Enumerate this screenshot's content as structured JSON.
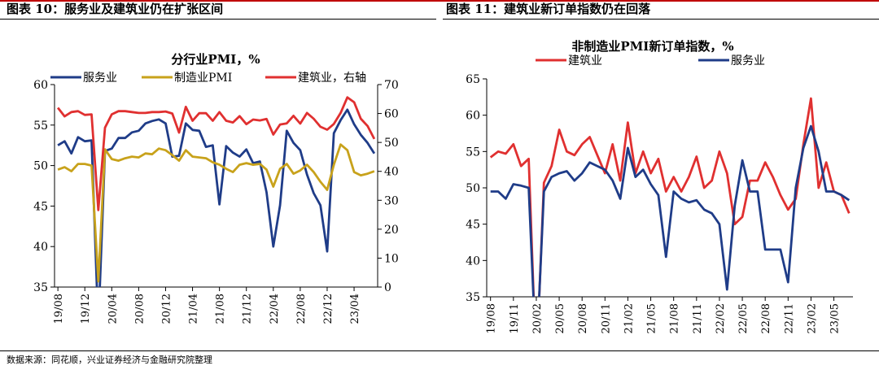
{
  "panels": {
    "left_title": "图表 10：服务业及建筑业仍在扩张区间",
    "right_title": "图表 11：建筑业新订单指数仍在回落"
  },
  "source": "数据来源：同花顺，兴业证券经济与金融研究院整理",
  "colors": {
    "blue": "#1f3c88",
    "gold": "#c8a21b",
    "red": "#e03030",
    "accent": "#c00000"
  },
  "chart_data": [
    {
      "type": "line",
      "title": "分行业PMI，%",
      "x": [
        "19/08",
        "19/09",
        "19/10",
        "19/11",
        "19/12",
        "20/01",
        "20/02",
        "20/03",
        "20/04",
        "20/05",
        "20/06",
        "20/07",
        "20/08",
        "20/09",
        "20/10",
        "20/11",
        "20/12",
        "21/01",
        "21/02",
        "21/03",
        "21/04",
        "21/05",
        "21/06",
        "21/07",
        "21/08",
        "21/09",
        "21/10",
        "21/11",
        "21/12",
        "22/01",
        "22/02",
        "22/03",
        "22/04",
        "22/05",
        "22/06",
        "22/07",
        "22/08",
        "22/09",
        "22/10",
        "22/11",
        "22/12",
        "23/01",
        "23/02",
        "23/03",
        "23/04",
        "23/05",
        "23/06",
        "23/07"
      ],
      "x_tick_labels": [
        "19/08",
        "19/12",
        "20/04",
        "20/08",
        "20/12",
        "21/04",
        "21/08",
        "21/12",
        "22/04",
        "22/08",
        "22/12",
        "23/04"
      ],
      "ylim": [
        35,
        60
      ],
      "yticks": [
        35,
        40,
        45,
        50,
        55,
        60
      ],
      "y2lim": [
        0,
        70
      ],
      "y2ticks": [
        0,
        10,
        20,
        30,
        40,
        50,
        60,
        70
      ],
      "series": [
        {
          "name": "服务业",
          "axis": "left",
          "color": "#1f3c88",
          "values": [
            52.5,
            53.0,
            51.5,
            53.5,
            53.0,
            53.1,
            30.1,
            51.8,
            52.1,
            53.4,
            53.4,
            54.1,
            54.3,
            55.2,
            55.5,
            55.7,
            55.2,
            51.1,
            51.2,
            55.2,
            54.4,
            54.3,
            52.3,
            52.5,
            45.2,
            52.4,
            51.6,
            51.1,
            52.0,
            50.3,
            50.5,
            46.7,
            40.0,
            45.1,
            54.3,
            52.8,
            51.9,
            48.9,
            46.6,
            45.1,
            39.4,
            54.0,
            55.6,
            56.9,
            55.1,
            53.8,
            52.8,
            51.5
          ]
        },
        {
          "name": "制造业PMI",
          "axis": "left",
          "color": "#c8a21b",
          "values": [
            49.5,
            49.8,
            49.3,
            50.2,
            50.2,
            50.0,
            35.7,
            52.0,
            50.8,
            50.6,
            50.9,
            51.1,
            51.0,
            51.5,
            51.4,
            52.1,
            51.9,
            51.3,
            50.6,
            51.9,
            51.1,
            51.0,
            50.9,
            50.4,
            50.1,
            49.6,
            49.2,
            50.1,
            50.3,
            50.1,
            50.2,
            49.5,
            47.4,
            49.6,
            50.2,
            49.0,
            49.4,
            50.1,
            49.2,
            48.0,
            47.0,
            50.1,
            52.6,
            51.9,
            49.2,
            48.8,
            49.0,
            49.3
          ]
        },
        {
          "name": "建筑业，右轴",
          "axis": "right",
          "color": "#e03030",
          "values": [
            62.0,
            59.0,
            60.5,
            60.8,
            59.5,
            59.7,
            26.6,
            55.1,
            59.7,
            60.8,
            60.8,
            60.5,
            60.2,
            60.2,
            60.5,
            60.5,
            60.7,
            60.0,
            53.4,
            62.3,
            57.5,
            60.1,
            60.1,
            57.5,
            60.5,
            57.5,
            56.9,
            59.1,
            56.3,
            57.9,
            57.6,
            58.1,
            52.7,
            56.2,
            56.6,
            59.2,
            56.5,
            60.2,
            58.2,
            55.4,
            54.4,
            56.4,
            60.2,
            65.6,
            63.9,
            58.2,
            55.7,
            51.2
          ]
        }
      ]
    },
    {
      "type": "line",
      "title": "非制造业PMI新订单指数，%",
      "x": [
        "19/08",
        "19/09",
        "19/10",
        "19/11",
        "19/12",
        "20/01",
        "20/02",
        "20/03",
        "20/04",
        "20/05",
        "20/06",
        "20/07",
        "20/08",
        "20/09",
        "20/10",
        "20/11",
        "20/12",
        "21/01",
        "21/02",
        "21/03",
        "21/04",
        "21/05",
        "21/06",
        "21/07",
        "21/08",
        "21/09",
        "21/10",
        "21/11",
        "21/12",
        "22/01",
        "22/02",
        "22/03",
        "22/04",
        "22/05",
        "22/06",
        "22/07",
        "22/08",
        "22/09",
        "22/10",
        "22/11",
        "22/12",
        "23/01",
        "23/02",
        "23/03",
        "23/04",
        "23/05",
        "23/06",
        "23/07"
      ],
      "x_tick_labels": [
        "19/08",
        "19/11",
        "20/02",
        "20/05",
        "20/08",
        "20/11",
        "21/02",
        "21/05",
        "21/08",
        "21/11",
        "22/02",
        "22/05",
        "22/08",
        "22/11",
        "23/02",
        "23/05"
      ],
      "ylim": [
        35,
        65
      ],
      "yticks": [
        35,
        40,
        45,
        50,
        55,
        60,
        65
      ],
      "series": [
        {
          "name": "建筑业",
          "color": "#e03030",
          "values": [
            54.2,
            55.0,
            54.7,
            56.0,
            53.0,
            54.0,
            25.0,
            50.7,
            53.0,
            58.0,
            55.0,
            54.5,
            56.0,
            57.0,
            54.5,
            52.0,
            56.0,
            51.0,
            59.0,
            52.0,
            55.0,
            52.0,
            54.0,
            49.5,
            51.5,
            49.5,
            51.5,
            54.3,
            50.0,
            51.0,
            55.0,
            52.0,
            45.0,
            46.0,
            51.0,
            51.0,
            53.5,
            51.5,
            49.0,
            47.0,
            48.5,
            56.0,
            62.3,
            50.0,
            53.5,
            49.5,
            49.0,
            46.5
          ]
        },
        {
          "name": "服务业",
          "color": "#1f3c88",
          "values": [
            49.5,
            49.5,
            48.5,
            50.5,
            50.3,
            50.0,
            26.0,
            49.5,
            51.5,
            52.0,
            52.3,
            51.0,
            52.0,
            53.5,
            53.0,
            52.5,
            51.0,
            48.5,
            55.5,
            51.5,
            52.5,
            50.5,
            49.0,
            40.5,
            49.5,
            48.5,
            48.0,
            48.3,
            47.0,
            46.5,
            45.0,
            36.0,
            47.5,
            53.8,
            49.5,
            49.5,
            41.5,
            41.5,
            41.5,
            37.0,
            50.0,
            55.5,
            58.5,
            55.0,
            49.5,
            49.5,
            49.0,
            48.3
          ]
        }
      ]
    }
  ]
}
